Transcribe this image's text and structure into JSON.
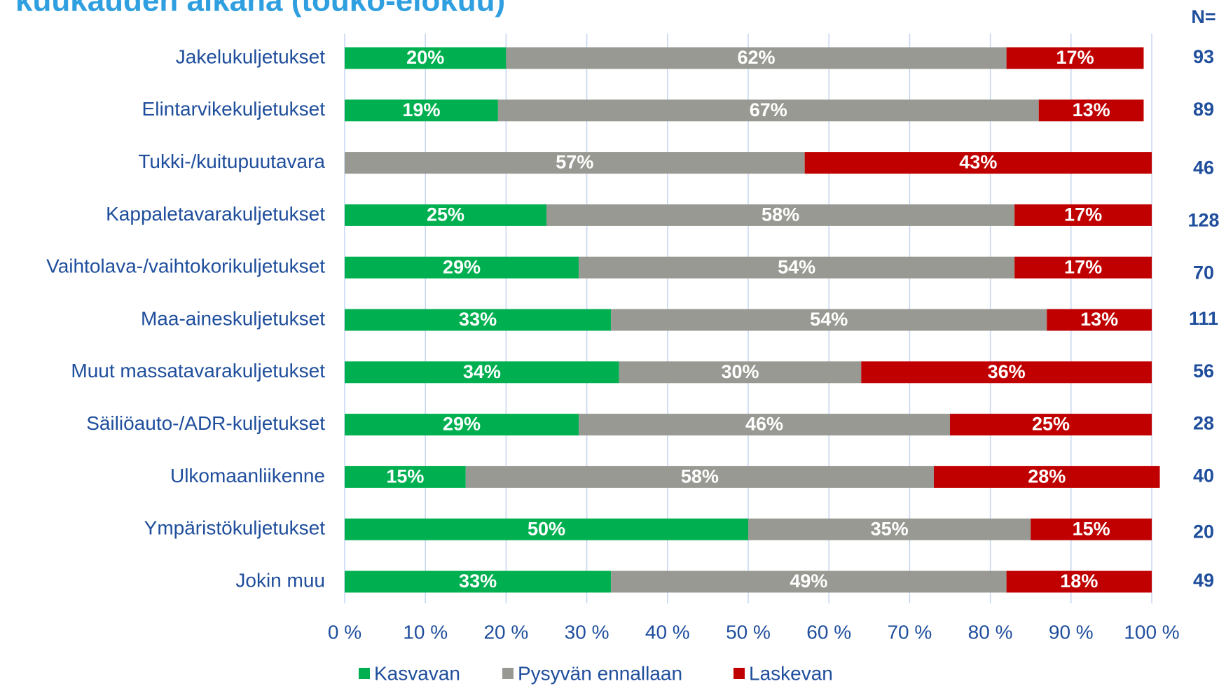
{
  "chart_data": {
    "type": "stacked_barh",
    "title": "kuukauden aikana (touko-elokuu)",
    "categories": [
      "Jakelukuljetukset",
      "Elintarvikekuljetukset",
      "Tukki-/kuitupuutavara",
      "Kappaletavarakuljetukset",
      "Vaihtolava-/vaihtokorikuljetukset",
      "Maa-aineskuljetukset",
      "Muut massatavarakuljetukset",
      "Säiliöauto-/ADR-kuljetukset",
      "Ulkomaanliikenne",
      "Ympäristökuljetukset",
      "Jokin muu"
    ],
    "series": [
      {
        "name": "Kasvavan",
        "color": "#00b050",
        "values": [
          20,
          19,
          0,
          25,
          29,
          33,
          34,
          29,
          15,
          50,
          33
        ],
        "value_labels": [
          "20%",
          "19%",
          null,
          "25%",
          "29%",
          "33%",
          "34%",
          "29%",
          "15%",
          "50%",
          "33%"
        ]
      },
      {
        "name": "Pysyvän ennallaan",
        "color": "#999993",
        "values": [
          62,
          67,
          57,
          58,
          54,
          54,
          30,
          46,
          58,
          35,
          49
        ],
        "value_labels": [
          "62%",
          "67%",
          "57%",
          "58%",
          "54%",
          "54%",
          "30%",
          "46%",
          "58%",
          "35%",
          "49%"
        ]
      },
      {
        "name": "Laskevan",
        "color": "#c00000",
        "values": [
          17,
          13,
          43,
          17,
          17,
          13,
          36,
          25,
          28,
          15,
          18
        ],
        "value_labels": [
          "17%",
          "13%",
          "43%",
          "17%",
          "17%",
          "13%",
          "36%",
          "25%",
          "28%",
          "15%",
          "18%"
        ]
      }
    ],
    "xlim": [
      0,
      100
    ],
    "xticks": [
      {
        "value": 0,
        "label": "0 %"
      },
      {
        "value": 10,
        "label": "10 %"
      },
      {
        "value": 20,
        "label": "20 %"
      },
      {
        "value": 30,
        "label": "30 %"
      },
      {
        "value": 40,
        "label": "40 %"
      },
      {
        "value": 50,
        "label": "50 %"
      },
      {
        "value": 60,
        "label": "60 %"
      },
      {
        "value": 70,
        "label": "70 %"
      },
      {
        "value": 80,
        "label": "80 %"
      },
      {
        "value": 90,
        "label": "90 %"
      },
      {
        "value": 100,
        "label": "100 %"
      }
    ],
    "grid": true,
    "n_header": "N=",
    "n_values": [
      93,
      89,
      46,
      128,
      70,
      111,
      56,
      28,
      40,
      20,
      49
    ]
  }
}
